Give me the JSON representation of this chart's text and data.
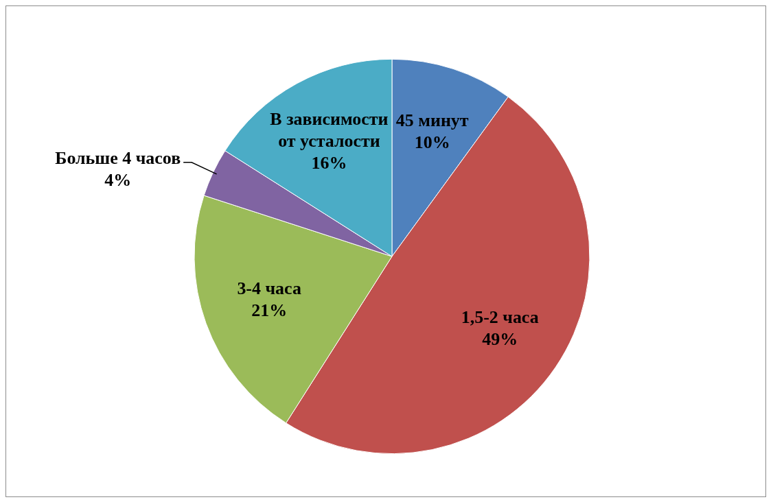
{
  "chart_data": {
    "type": "pie",
    "categories": [
      "45 минут",
      "1,5-2 часа",
      "3-4 часа",
      "Больше 4 часов",
      "В зависимости от усталости"
    ],
    "values": [
      10,
      49,
      21,
      4,
      16
    ],
    "colors": [
      "#4f81bd",
      "#c0504d",
      "#9bbb59",
      "#8064a2",
      "#4bacc6"
    ],
    "value_labels": [
      "10%",
      "49%",
      "21%",
      "4%",
      "16%"
    ],
    "legend": false
  }
}
